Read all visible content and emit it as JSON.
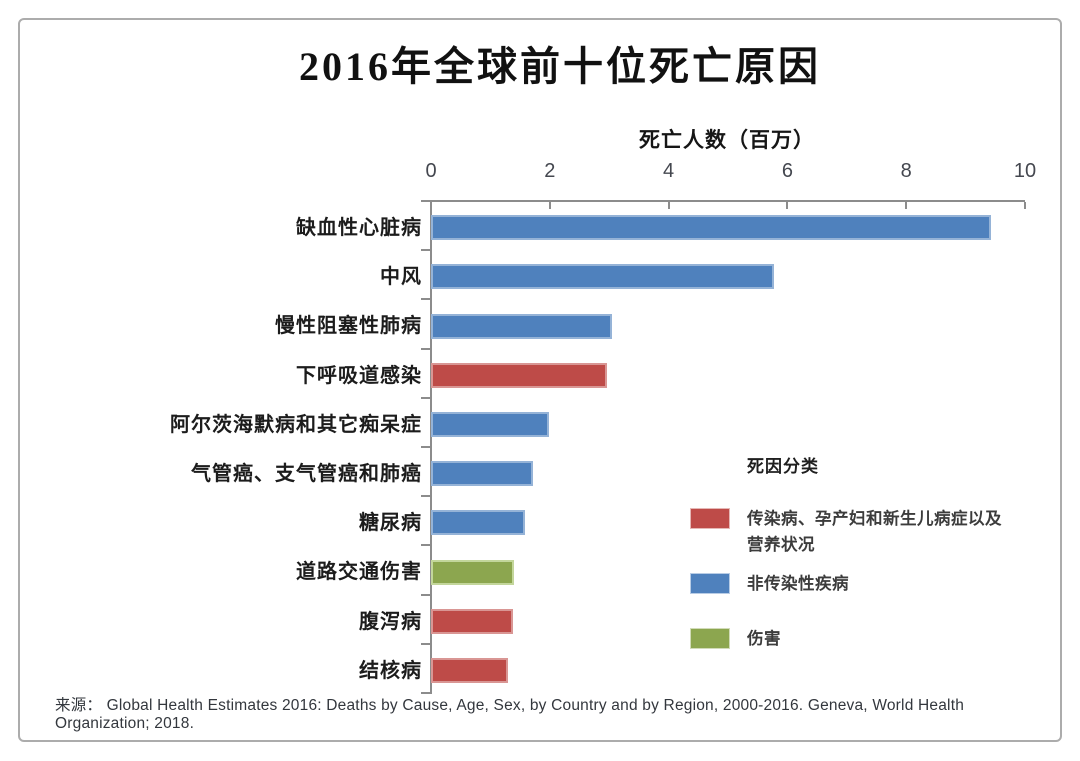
{
  "title": "2016年全球前十位死亡原因",
  "axis_title": "死亡人数（百万）",
  "source": "来源： Global Health Estimates 2016: Deaths by Cause, Age, Sex, by Country and by Region, 2000-2016. Geneva, World Health Organization; 2018.",
  "chart_data": {
    "type": "bar",
    "orientation": "horizontal",
    "title": "2016年全球前十位死亡原因",
    "xlabel": "死亡人数（百万）",
    "xlim": [
      0,
      10
    ],
    "xticks": [
      0,
      2,
      4,
      6,
      8,
      10
    ],
    "grid": false,
    "legend_position": "right-middle",
    "categories": [
      "缺血性心脏病",
      "中风",
      "慢性阻塞性肺病",
      "下呼吸道感染",
      "阿尔茨海默病和其它痴呆症",
      "气管癌、支气管癌和肺癌",
      "糖尿病",
      "道路交通伤害",
      "腹泻病",
      "结核病"
    ],
    "values": [
      9.43,
      5.78,
      3.04,
      2.96,
      1.99,
      1.71,
      1.59,
      1.4,
      1.38,
      1.29
    ],
    "category_groups": [
      "ncd",
      "ncd",
      "ncd",
      "communicable",
      "ncd",
      "ncd",
      "ncd",
      "injury",
      "communicable",
      "communicable"
    ],
    "group_colors": {
      "communicable": "#BE4B48",
      "ncd": "#4F81BD",
      "injury": "#8CA64F"
    },
    "group_border_colors": {
      "communicable": "#D99694",
      "ncd": "#95B3D7",
      "injury": "#C3D69B"
    },
    "legend": {
      "title": "死因分类",
      "entries": [
        {
          "key": "communicable",
          "label": "传染病、孕产妇和新生儿病症以及\n营养状况",
          "color": "#BE4B48"
        },
        {
          "key": "ncd",
          "label": "非传染性疾病",
          "color": "#4F81BD"
        },
        {
          "key": "injury",
          "label": "伤害",
          "color": "#8CA64F"
        }
      ]
    }
  }
}
